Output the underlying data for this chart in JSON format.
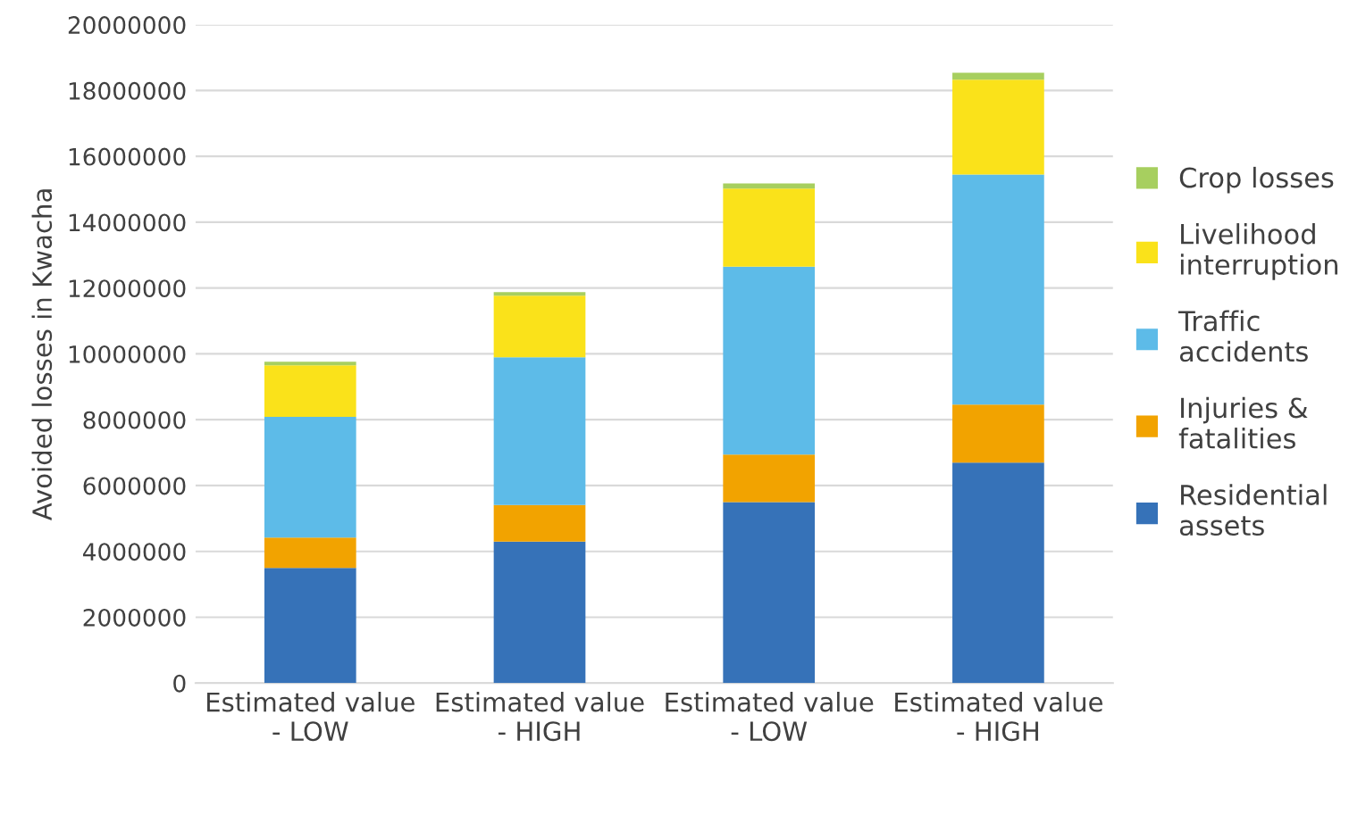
{
  "chart_data": {
    "type": "bar",
    "stacked": true,
    "ylabel": "Avoided losses in Kwacha",
    "categories": [
      "Estimated value\n- LOW",
      "Estimated value\n- HIGH",
      "Estimated value\n- LOW",
      "Estimated value\n- HIGH"
    ],
    "series": [
      {
        "name": "Residential\nassets",
        "color": "#3672b8",
        "values": [
          3500000,
          4300000,
          5500000,
          6700000
        ]
      },
      {
        "name": "Injuries &\nfatalities",
        "color": "#f2a300",
        "values": [
          920000,
          1110000,
          1440000,
          1760000
        ]
      },
      {
        "name": "Traffic\naccidents",
        "color": "#5dbbe8",
        "values": [
          3670000,
          4490000,
          5710000,
          6990000
        ]
      },
      {
        "name": "Livelihood\ninterruption",
        "color": "#fae21a",
        "values": [
          1560000,
          1870000,
          2370000,
          2880000
        ]
      },
      {
        "name": "Crop losses",
        "color": "#a7cf5f",
        "values": [
          110000,
          110000,
          160000,
          210000
        ]
      }
    ],
    "ylim": [
      0,
      20000000
    ],
    "yticks": [
      0,
      2000000,
      4000000,
      6000000,
      8000000,
      10000000,
      12000000,
      14000000,
      16000000,
      18000000,
      20000000
    ],
    "grid": "y",
    "legend": "right"
  }
}
